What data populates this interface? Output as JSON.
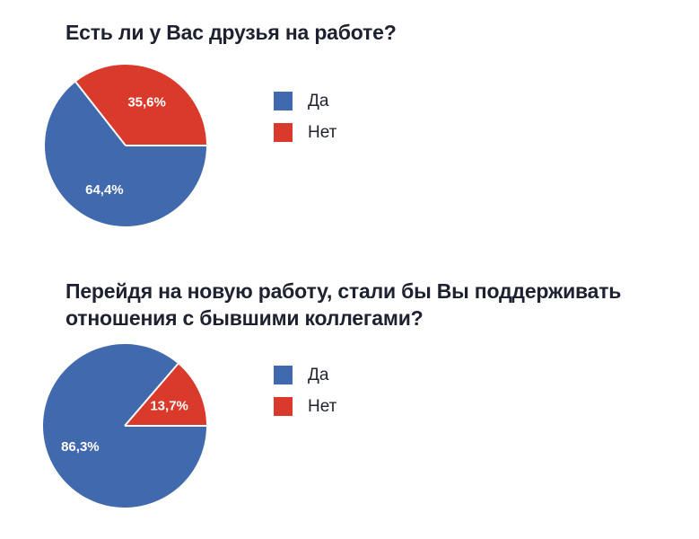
{
  "page": {
    "background": "#ffffff"
  },
  "chart_data": [
    {
      "type": "pie",
      "title": "Есть ли у Вас друзья на работе?",
      "title_lines": [
        "Есть ли у Вас друзья на работе?"
      ],
      "labels": [
        "Да",
        "Нет"
      ],
      "values": [
        64.4,
        35.6
      ],
      "value_labels": [
        "64,4%",
        "35,6%"
      ],
      "colors": [
        "#4169ad",
        "#d93a2b"
      ],
      "start_angle_deg": 0,
      "direction": "clockwise",
      "legend_position": "right",
      "slice_label_position": "inside",
      "slice_label_color": "#ffffff",
      "separator_color": "#ffffff"
    },
    {
      "type": "pie",
      "title": "Перейдя на новую работу, стали бы Вы поддерживать отношения с бывшими коллегами?",
      "title_lines": [
        "Перейдя на новую работу, стали бы Вы поддерживать",
        "отношения с бывшими коллегами?"
      ],
      "labels": [
        "Да",
        "Нет"
      ],
      "values": [
        86.3,
        13.7
      ],
      "value_labels": [
        "86,3%",
        "13,7%"
      ],
      "colors": [
        "#4169ad",
        "#d93a2b"
      ],
      "start_angle_deg": 0,
      "direction": "clockwise",
      "legend_position": "right",
      "slice_label_position": "inside",
      "slice_label_color": "#ffffff",
      "separator_color": "#ffffff"
    }
  ]
}
